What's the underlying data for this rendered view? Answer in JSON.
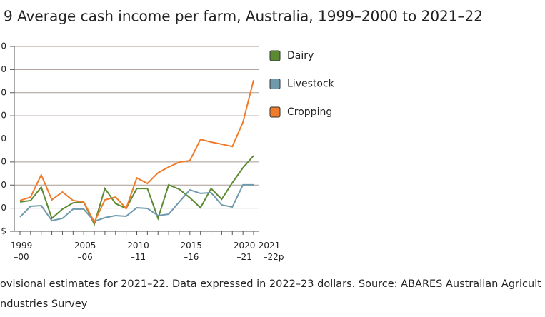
{
  "chart_data": {
    "type": "line",
    "title": "9 Average cash income per farm, Australia, 1999–2000 to 2021–22",
    "note_lines": [
      "ovisional estimates for 2021–22. Data expressed in 2022–23 dollars. Source: ABARES Australian Agricult",
      "ndustries Survey"
    ],
    "categories": [
      "1999\n–00",
      null,
      null,
      null,
      null,
      null,
      "2005\n–06",
      null,
      null,
      null,
      null,
      "2010\n–11",
      null,
      null,
      null,
      null,
      "2015\n–16",
      null,
      null,
      null,
      null,
      "2020\n–21",
      "2021\n–22p"
    ],
    "series": [
      {
        "name": "Dairy",
        "color": "#5b8a32",
        "values": [
          127,
          133,
          191,
          56,
          96,
          123,
          127,
          31,
          185,
          120,
          99,
          185,
          185,
          56,
          201,
          182,
          145,
          102,
          185,
          139,
          210,
          275,
          327
        ]
      },
      {
        "name": "Livestock",
        "color": "#6f9aab",
        "values": [
          62,
          108,
          111,
          46,
          56,
          96,
          96,
          43,
          59,
          68,
          65,
          102,
          99,
          68,
          74,
          127,
          179,
          164,
          167,
          114,
          105,
          201,
          201
        ]
      },
      {
        "name": "Cropping",
        "color": "#f07b2a",
        "values": [
          133,
          148,
          244,
          136,
          170,
          133,
          127,
          40,
          136,
          148,
          99,
          231,
          207,
          253,
          278,
          299,
          306,
          398,
          386,
          377,
          367,
          472,
          654
        ]
      }
    ],
    "ylim": [
      0,
      800
    ],
    "yticks": [
      {
        "value": 0,
        "label": "$"
      },
      {
        "value": 100,
        "label": "0"
      },
      {
        "value": 200,
        "label": "0"
      },
      {
        "value": 300,
        "label": "0"
      },
      {
        "value": 400,
        "label": "0"
      },
      {
        "value": 500,
        "label": "0"
      },
      {
        "value": 600,
        "label": "0"
      },
      {
        "value": 700,
        "label": "0"
      },
      {
        "value": 800,
        "label": "0"
      }
    ],
    "grid": true
  }
}
